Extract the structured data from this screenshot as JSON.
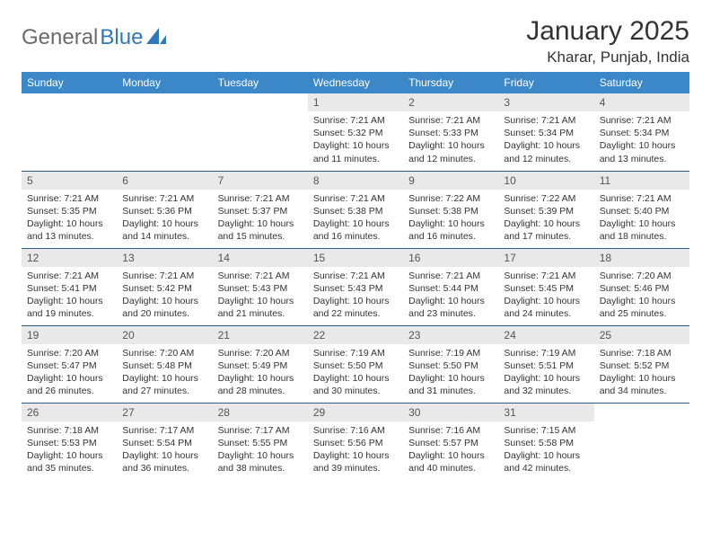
{
  "logo": {
    "text1": "General",
    "text2": "Blue"
  },
  "title": "January 2025",
  "location": "Kharar, Punjab, India",
  "header_bg": "#3b87c8",
  "header_fg": "#ffffff",
  "daynum_bg": "#e9e9e9",
  "rule_color": "#2f5b85",
  "weekdays": [
    "Sunday",
    "Monday",
    "Tuesday",
    "Wednesday",
    "Thursday",
    "Friday",
    "Saturday"
  ],
  "weeks": [
    [
      null,
      null,
      null,
      {
        "n": "1",
        "sr": "7:21 AM",
        "ss": "5:32 PM",
        "dl": "10 hours and 11 minutes."
      },
      {
        "n": "2",
        "sr": "7:21 AM",
        "ss": "5:33 PM",
        "dl": "10 hours and 12 minutes."
      },
      {
        "n": "3",
        "sr": "7:21 AM",
        "ss": "5:34 PM",
        "dl": "10 hours and 12 minutes."
      },
      {
        "n": "4",
        "sr": "7:21 AM",
        "ss": "5:34 PM",
        "dl": "10 hours and 13 minutes."
      }
    ],
    [
      {
        "n": "5",
        "sr": "7:21 AM",
        "ss": "5:35 PM",
        "dl": "10 hours and 13 minutes."
      },
      {
        "n": "6",
        "sr": "7:21 AM",
        "ss": "5:36 PM",
        "dl": "10 hours and 14 minutes."
      },
      {
        "n": "7",
        "sr": "7:21 AM",
        "ss": "5:37 PM",
        "dl": "10 hours and 15 minutes."
      },
      {
        "n": "8",
        "sr": "7:21 AM",
        "ss": "5:38 PM",
        "dl": "10 hours and 16 minutes."
      },
      {
        "n": "9",
        "sr": "7:22 AM",
        "ss": "5:38 PM",
        "dl": "10 hours and 16 minutes."
      },
      {
        "n": "10",
        "sr": "7:22 AM",
        "ss": "5:39 PM",
        "dl": "10 hours and 17 minutes."
      },
      {
        "n": "11",
        "sr": "7:21 AM",
        "ss": "5:40 PM",
        "dl": "10 hours and 18 minutes."
      }
    ],
    [
      {
        "n": "12",
        "sr": "7:21 AM",
        "ss": "5:41 PM",
        "dl": "10 hours and 19 minutes."
      },
      {
        "n": "13",
        "sr": "7:21 AM",
        "ss": "5:42 PM",
        "dl": "10 hours and 20 minutes."
      },
      {
        "n": "14",
        "sr": "7:21 AM",
        "ss": "5:43 PM",
        "dl": "10 hours and 21 minutes."
      },
      {
        "n": "15",
        "sr": "7:21 AM",
        "ss": "5:43 PM",
        "dl": "10 hours and 22 minutes."
      },
      {
        "n": "16",
        "sr": "7:21 AM",
        "ss": "5:44 PM",
        "dl": "10 hours and 23 minutes."
      },
      {
        "n": "17",
        "sr": "7:21 AM",
        "ss": "5:45 PM",
        "dl": "10 hours and 24 minutes."
      },
      {
        "n": "18",
        "sr": "7:20 AM",
        "ss": "5:46 PM",
        "dl": "10 hours and 25 minutes."
      }
    ],
    [
      {
        "n": "19",
        "sr": "7:20 AM",
        "ss": "5:47 PM",
        "dl": "10 hours and 26 minutes."
      },
      {
        "n": "20",
        "sr": "7:20 AM",
        "ss": "5:48 PM",
        "dl": "10 hours and 27 minutes."
      },
      {
        "n": "21",
        "sr": "7:20 AM",
        "ss": "5:49 PM",
        "dl": "10 hours and 28 minutes."
      },
      {
        "n": "22",
        "sr": "7:19 AM",
        "ss": "5:50 PM",
        "dl": "10 hours and 30 minutes."
      },
      {
        "n": "23",
        "sr": "7:19 AM",
        "ss": "5:50 PM",
        "dl": "10 hours and 31 minutes."
      },
      {
        "n": "24",
        "sr": "7:19 AM",
        "ss": "5:51 PM",
        "dl": "10 hours and 32 minutes."
      },
      {
        "n": "25",
        "sr": "7:18 AM",
        "ss": "5:52 PM",
        "dl": "10 hours and 34 minutes."
      }
    ],
    [
      {
        "n": "26",
        "sr": "7:18 AM",
        "ss": "5:53 PM",
        "dl": "10 hours and 35 minutes."
      },
      {
        "n": "27",
        "sr": "7:17 AM",
        "ss": "5:54 PM",
        "dl": "10 hours and 36 minutes."
      },
      {
        "n": "28",
        "sr": "7:17 AM",
        "ss": "5:55 PM",
        "dl": "10 hours and 38 minutes."
      },
      {
        "n": "29",
        "sr": "7:16 AM",
        "ss": "5:56 PM",
        "dl": "10 hours and 39 minutes."
      },
      {
        "n": "30",
        "sr": "7:16 AM",
        "ss": "5:57 PM",
        "dl": "10 hours and 40 minutes."
      },
      {
        "n": "31",
        "sr": "7:15 AM",
        "ss": "5:58 PM",
        "dl": "10 hours and 42 minutes."
      },
      null
    ]
  ],
  "labels": {
    "sunrise": "Sunrise:",
    "sunset": "Sunset:",
    "daylight": "Daylight:"
  }
}
